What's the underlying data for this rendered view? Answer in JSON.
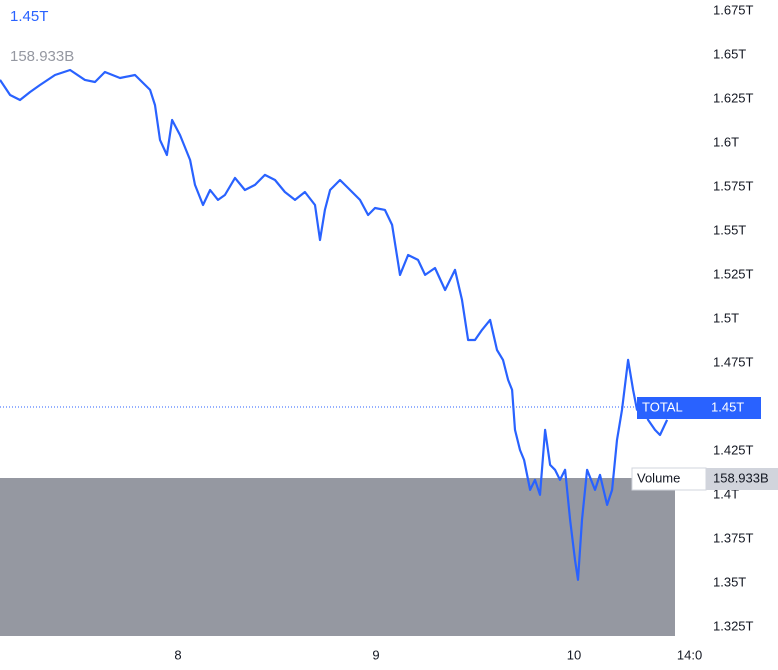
{
  "chart_data": {
    "type": "line",
    "x": [
      7.101,
      7.152,
      7.202,
      7.253,
      7.303,
      7.379,
      7.455,
      7.53,
      7.581,
      7.631,
      7.707,
      7.783,
      7.859,
      7.884,
      7.909,
      7.944,
      7.97,
      8.01,
      8.061,
      8.086,
      8.126,
      8.162,
      8.202,
      8.237,
      8.288,
      8.338,
      8.389,
      8.439,
      8.49,
      8.54,
      8.591,
      8.641,
      8.692,
      8.717,
      8.742,
      8.768,
      8.818,
      8.869,
      8.919,
      8.96,
      8.995,
      9.045,
      9.081,
      9.121,
      9.162,
      9.212,
      9.248,
      9.298,
      9.349,
      9.399,
      9.434,
      9.465,
      9.5,
      9.535,
      9.576,
      9.611,
      9.641,
      9.667,
      9.687,
      9.702,
      9.727,
      9.748,
      9.778,
      9.803,
      9.828,
      9.854,
      9.879,
      9.904,
      9.929,
      9.955,
      9.98,
      10.005,
      10.02,
      10.04,
      10.066,
      10.106,
      10.131,
      10.167,
      10.192,
      10.217,
      10.242,
      10.273,
      10.298,
      10.318,
      10.343,
      10.374,
      10.409,
      10.434,
      10.47
    ],
    "series": [
      {
        "name": "TOTAL",
        "color": "#2962ff",
        "values": [
          1.6359,
          1.6273,
          1.6245,
          1.629,
          1.633,
          1.6387,
          1.6415,
          1.6359,
          1.6347,
          1.6404,
          1.637,
          1.6387,
          1.6302,
          1.6216,
          1.6018,
          1.5932,
          1.6131,
          1.6046,
          1.5904,
          1.5762,
          1.5648,
          1.5733,
          1.5677,
          1.5705,
          1.5802,
          1.5733,
          1.5762,
          1.5819,
          1.579,
          1.5722,
          1.5677,
          1.5722,
          1.5648,
          1.5449,
          1.562,
          1.5733,
          1.579,
          1.5733,
          1.5677,
          1.5591,
          1.5631,
          1.562,
          1.5535,
          1.5251,
          1.5364,
          1.5336,
          1.5251,
          1.529,
          1.5165,
          1.5279,
          1.5109,
          1.4881,
          1.4881,
          1.4938,
          1.4995,
          1.4824,
          1.4768,
          1.4654,
          1.4597,
          1.437,
          1.4256,
          1.4199,
          1.4029,
          1.4086,
          1.4001,
          1.437,
          1.4171,
          1.4143,
          1.4086,
          1.4143,
          1.3859,
          1.3631,
          1.3518,
          1.3859,
          1.4143,
          1.4029,
          1.4114,
          1.3944,
          1.4029,
          1.4313,
          1.4484,
          1.4768,
          1.4597,
          1.4484,
          1.454,
          1.4427,
          1.437,
          1.4341,
          1.4427
        ]
      }
    ],
    "current_value": {
      "value": 1.45,
      "label": "1.45T"
    },
    "volume": {
      "name": "Volume",
      "label": "158.933B"
    },
    "xlim": [
      7.101,
      10.525
    ],
    "xticks": [
      8,
      9,
      10,
      {
        "value": 10.5833,
        "label": "14:0"
      }
    ],
    "ylim": [
      1.3176,
      1.6813
    ],
    "yticks": [
      {
        "value": 1.675,
        "label": "1.675T"
      },
      {
        "value": 1.65,
        "label": "1.65T"
      },
      {
        "value": 1.625,
        "label": "1.625T"
      },
      {
        "value": 1.6,
        "label": "1.6T"
      },
      {
        "value": 1.575,
        "label": "1.575T"
      },
      {
        "value": 1.55,
        "label": "1.55T"
      },
      {
        "value": 1.525,
        "label": "1.525T"
      },
      {
        "value": 1.5,
        "label": "1.5T"
      },
      {
        "value": 1.475,
        "label": "1.475T"
      },
      {
        "value": 1.425,
        "label": "1.425T"
      },
      {
        "value": 1.4,
        "label": "1.4T"
      },
      {
        "value": 1.375,
        "label": "1.375T"
      },
      {
        "value": 1.35,
        "label": "1.35T"
      },
      {
        "value": 1.325,
        "label": "1.325T"
      }
    ],
    "grid": false
  }
}
